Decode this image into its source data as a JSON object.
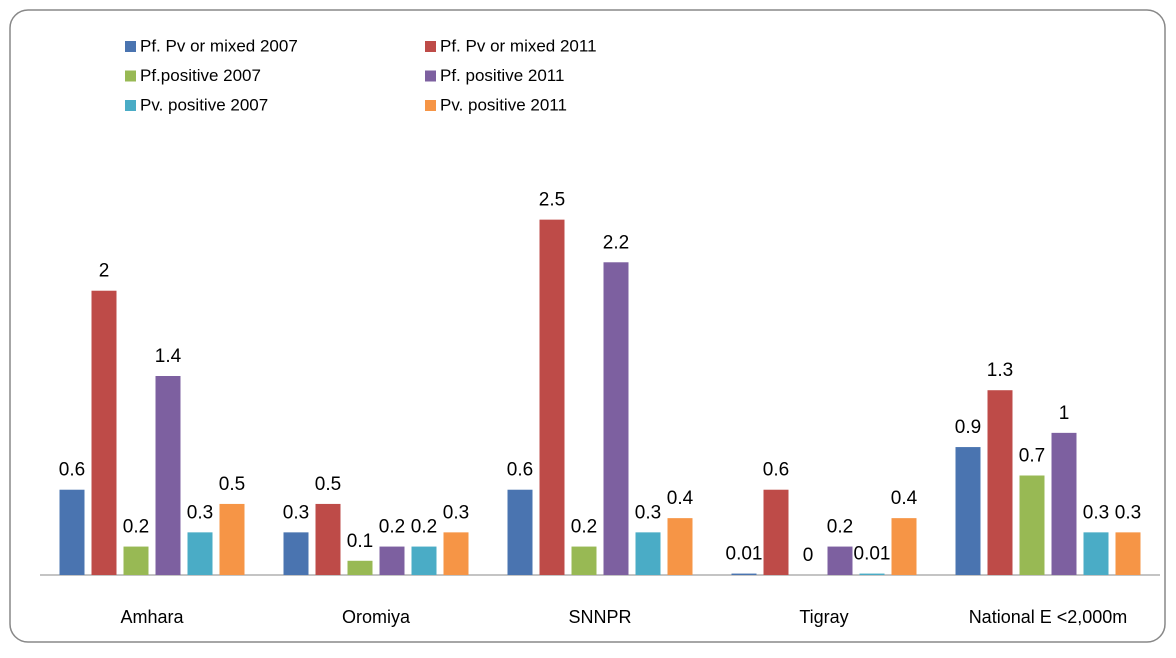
{
  "chart_data": {
    "type": "bar",
    "categories": [
      "Amhara",
      "Oromiya",
      "SNNPR",
      "Tigray",
      "National E <2,000m"
    ],
    "series": [
      {
        "name": "Pf. Pv or mixed 2007",
        "color": "#4a74b0",
        "values": [
          0.6,
          0.3,
          0.6,
          0.01,
          0.9
        ]
      },
      {
        "name": "Pf. Pv or mixed 2011",
        "color": "#be4b48",
        "values": [
          2,
          0.5,
          2.5,
          0.6,
          1.3
        ]
      },
      {
        "name": "Pf.positive 2007",
        "color": "#98b954",
        "values": [
          0.2,
          0.1,
          0.2,
          0,
          0.7
        ]
      },
      {
        "name": "Pf. positive 2011",
        "color": "#7d60a0",
        "values": [
          1.4,
          0.2,
          2.2,
          0.2,
          1
        ]
      },
      {
        "name": "Pv. positive 2007",
        "color": "#4aacc6",
        "values": [
          0.3,
          0.2,
          0.3,
          0.01,
          0.3
        ]
      },
      {
        "name": "Pv. positive 2011",
        "color": "#f69546",
        "values": [
          0.5,
          0.3,
          0.4,
          0.4,
          0.3
        ]
      }
    ],
    "ylim": [
      0,
      2.8
    ],
    "legend": "top-left"
  }
}
